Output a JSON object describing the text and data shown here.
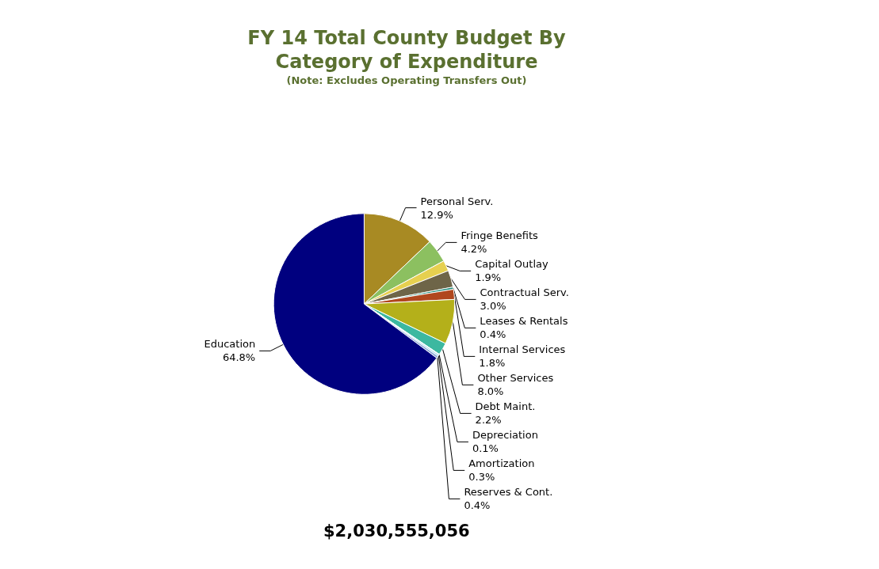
{
  "chart_data": {
    "type": "pie",
    "title": "FY 14 Total County Budget By\nCategory of Expenditure",
    "subtitle": "(Note: Excludes Operating Transfers Out)",
    "categories": [
      "Personal Serv.",
      "Fringe Benefits",
      "Capital Outlay",
      "Contractual Serv.",
      "Leases & Rentals",
      "Internal Services",
      "Other Services",
      "Debt Maint.",
      "Depreciation",
      "Amortization",
      "Reserves & Cont.",
      "Education"
    ],
    "values": [
      12.9,
      4.2,
      1.9,
      3.0,
      0.4,
      1.8,
      8.0,
      2.2,
      0.1,
      0.3,
      0.4,
      64.8
    ],
    "value_labels": [
      "12.9%",
      "4.2%",
      "1.9%",
      "3.0%",
      "0.4%",
      "1.8%",
      "8.0%",
      "2.2%",
      "0.1%",
      "0.3%",
      "0.4%",
      "64.8%"
    ],
    "colors": [
      "#a88a23",
      "#8cc060",
      "#e6d050",
      "#6e6548",
      "#1a8a78",
      "#b0471e",
      "#b4b01a",
      "#3cb8a0",
      "#a8d8e8",
      "#b0e0f0",
      "#8aa8d8",
      "#00007f"
    ],
    "annotations": [
      "$2,030,555,056"
    ],
    "legend": false
  }
}
